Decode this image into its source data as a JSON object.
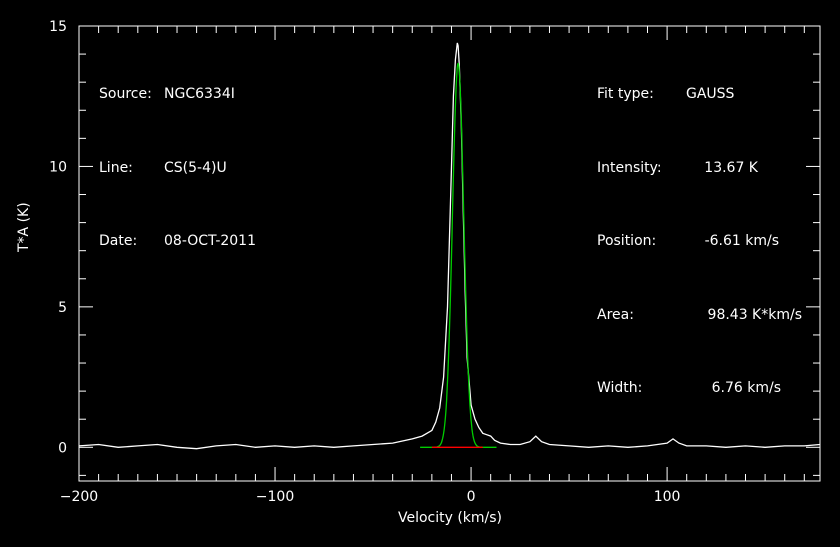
{
  "header_left": {
    "source_key": "Source:",
    "source_val": "NGC6334I",
    "line_key": "Line:",
    "line_val": "CS(5-4)U",
    "date_key": "Date:",
    "date_val": "08-OCT-2011"
  },
  "header_right": {
    "fit_key": "Fit type:",
    "fit_val": "GAUSS",
    "intensity_key": "Intensity:",
    "intensity_val": "13.67 K",
    "position_key": "Position:",
    "position_val": "-6.61 km/s",
    "area_key": "Area:",
    "area_val": "98.43 K*km/s",
    "width_key": "Width:",
    "width_val": "6.76 km/s"
  },
  "chart_data": {
    "type": "line",
    "xlabel": "Velocity (km/s)",
    "ylabel": "T*A (K)",
    "xlim": [
      -200,
      178
    ],
    "ylim": [
      -1.2,
      15
    ],
    "x_ticks": [
      -200,
      -100,
      0,
      100
    ],
    "y_ticks": [
      0,
      5,
      10,
      15
    ],
    "series": [
      {
        "role": "spectrum",
        "color": "#ffffff",
        "x": [
          -200,
          -190,
          -180,
          -170,
          -160,
          -150,
          -140,
          -130,
          -120,
          -110,
          -100,
          -90,
          -80,
          -70,
          -60,
          -50,
          -40,
          -30,
          -25,
          -20,
          -18,
          -16,
          -14,
          -12,
          -10,
          -9,
          -8,
          -7,
          -6.6,
          -6,
          -5,
          -4,
          -3,
          -2,
          0,
          2,
          4,
          6,
          8,
          10,
          12,
          15,
          20,
          25,
          30,
          33,
          36,
          40,
          50,
          60,
          70,
          80,
          90,
          100,
          103,
          106,
          110,
          120,
          130,
          140,
          150,
          160,
          170,
          178
        ],
        "y": [
          0.05,
          0.1,
          0.0,
          0.05,
          0.1,
          0.0,
          -0.05,
          0.05,
          0.1,
          0.0,
          0.05,
          0.0,
          0.05,
          0.0,
          0.05,
          0.1,
          0.15,
          0.3,
          0.4,
          0.6,
          0.9,
          1.4,
          2.5,
          5.0,
          10.0,
          12.5,
          13.8,
          14.4,
          14.3,
          13.6,
          11.5,
          8.5,
          5.5,
          3.2,
          1.5,
          1.0,
          0.7,
          0.5,
          0.45,
          0.4,
          0.25,
          0.15,
          0.1,
          0.1,
          0.2,
          0.4,
          0.2,
          0.1,
          0.05,
          0.0,
          0.05,
          0.0,
          0.05,
          0.15,
          0.3,
          0.15,
          0.05,
          0.05,
          0.0,
          0.05,
          0.0,
          0.05,
          0.05,
          0.1
        ]
      },
      {
        "role": "gaussian fit",
        "color": "#00cc00",
        "function": "gaussian",
        "amplitude": 13.67,
        "center": -6.61,
        "fwhm": 6.76,
        "x_range": [
          -26,
          13
        ]
      },
      {
        "role": "baseline",
        "color": "#ff0000",
        "x": [
          -20,
          6
        ],
        "y": [
          0,
          0
        ]
      }
    ]
  }
}
